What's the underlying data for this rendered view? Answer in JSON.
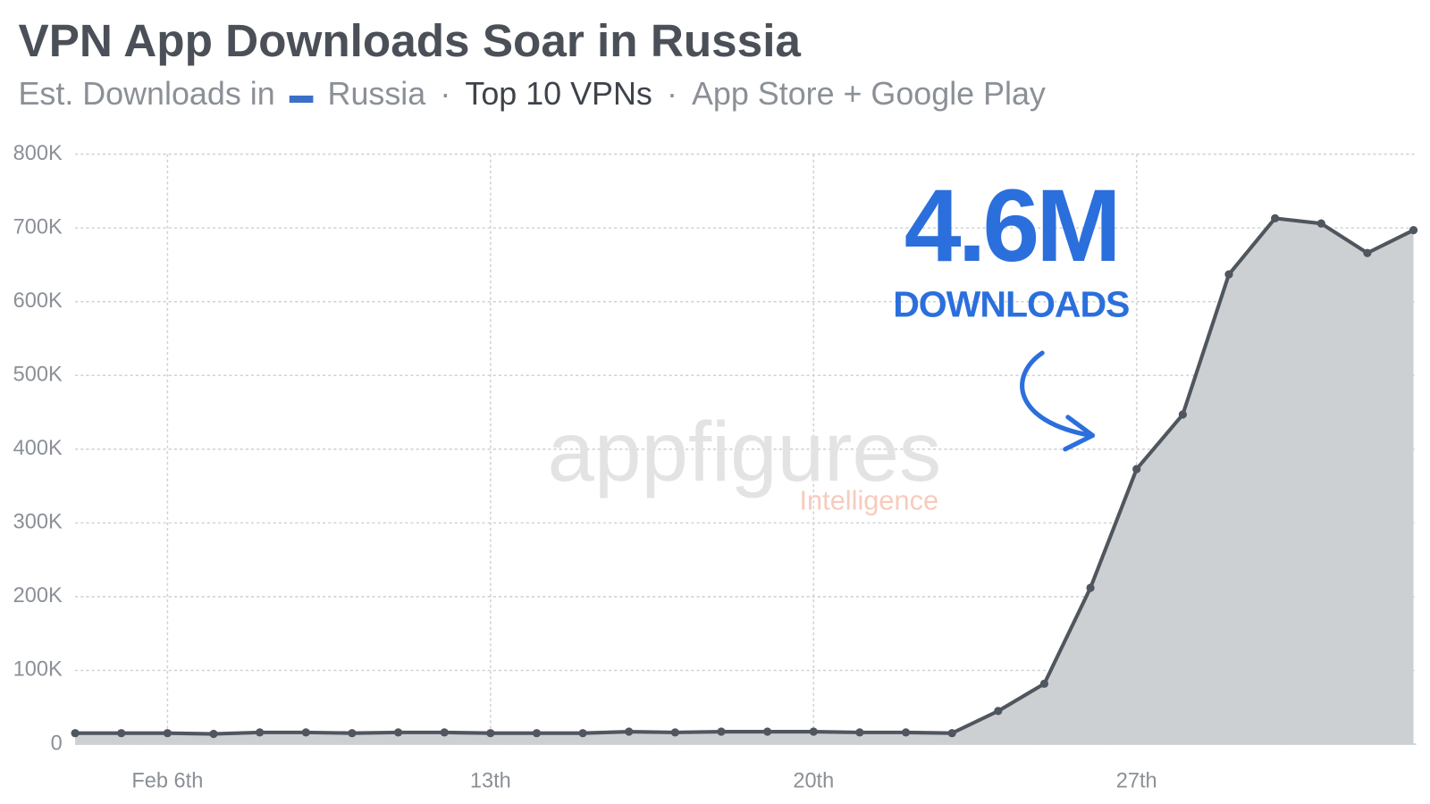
{
  "chart_data": {
    "type": "area",
    "title": "VPN App Downloads Soar in Russia",
    "subtitle": {
      "prefix": "Est. Downloads in",
      "country": "Russia",
      "separator": "·",
      "focus": "Top 10 VPNs",
      "stores": "App Store + Google Play"
    },
    "annotation": {
      "big": "4.6M",
      "small": "DOWNLOADS"
    },
    "watermark": {
      "brand": "appfigures",
      "product": "Intelligence"
    },
    "categories": [
      null,
      null,
      "Feb 6th",
      null,
      null,
      null,
      null,
      null,
      null,
      "13th",
      null,
      null,
      null,
      null,
      null,
      null,
      "20th",
      null,
      null,
      null,
      null,
      null,
      null,
      "27th",
      null,
      null,
      null,
      null,
      null,
      null
    ],
    "series": [
      {
        "name": "Est. Downloads",
        "color": "#50565e",
        "fill": "#cdd0d3",
        "values": [
          15000,
          15000,
          15000,
          14000,
          16000,
          16000,
          15000,
          16000,
          16000,
          15000,
          15000,
          15000,
          17000,
          16000,
          17000,
          17000,
          17000,
          16000,
          16000,
          15000,
          45000,
          82000,
          212000,
          373000,
          447000,
          637000,
          713000,
          706000,
          666000,
          697000
        ]
      }
    ],
    "ylim": [
      0,
      800000
    ],
    "yticks": [
      0,
      {
        "value": 100000,
        "label": "100K"
      },
      {
        "value": 200000,
        "label": "200K"
      },
      {
        "value": 300000,
        "label": "300K"
      },
      {
        "value": 400000,
        "label": "400K"
      },
      {
        "value": 500000,
        "label": "500K"
      },
      {
        "value": 600000,
        "label": "600K"
      },
      {
        "value": 700000,
        "label": "700K"
      },
      {
        "value": 800000,
        "label": "800K"
      }
    ],
    "grid": true
  }
}
